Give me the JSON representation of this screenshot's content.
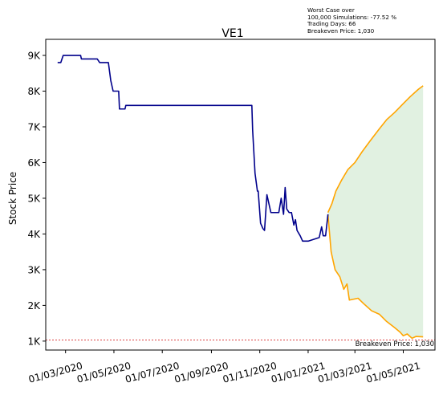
{
  "chart_data": {
    "type": "line",
    "title": "VE1",
    "xlabel": "",
    "ylabel": "Stock Price",
    "annotation_lines": [
      "Worst Case over",
      "100,000 Simulations: -77.52 %",
      "Trading Days: 66",
      "Breakeven Price: 1,030"
    ],
    "breakeven": {
      "value": 1030,
      "label": "Breakeven Price: 1,030",
      "color": "#d62728"
    },
    "x_ticks": [
      "01/03/2020",
      "01/05/2020",
      "01/07/2020",
      "01/09/2020",
      "01/11/2020",
      "01/01/2021",
      "01/03/2021",
      "01/05/2021"
    ],
    "y_ticks": [
      {
        "value": 1000,
        "label": "1K"
      },
      {
        "value": 2000,
        "label": "2K"
      },
      {
        "value": 3000,
        "label": "3K"
      },
      {
        "value": 4000,
        "label": "4K"
      },
      {
        "value": 5000,
        "label": "5K"
      },
      {
        "value": 6000,
        "label": "6K"
      },
      {
        "value": 7000,
        "label": "7K"
      },
      {
        "value": 8000,
        "label": "8K"
      },
      {
        "value": 9000,
        "label": "9K"
      }
    ],
    "xlim": [
      "2020-02-05",
      "2021-06-10"
    ],
    "ylim": [
      750,
      9450
    ],
    "grid": false,
    "colors": {
      "history": "#00008b",
      "simulation": "#ffa500",
      "band": "#c8e6c9"
    },
    "series": [
      {
        "role": "history",
        "points": [
          [
            "2020-02-20",
            8800
          ],
          [
            "2020-02-24",
            8800
          ],
          [
            "2020-02-27",
            9000
          ],
          [
            "2020-03-02",
            9000
          ],
          [
            "2020-03-20",
            9000
          ],
          [
            "2020-03-21",
            8900
          ],
          [
            "2020-04-10",
            8900
          ],
          [
            "2020-04-13",
            8800
          ],
          [
            "2020-04-24",
            8800
          ],
          [
            "2020-04-27",
            8300
          ],
          [
            "2020-04-30",
            8000
          ],
          [
            "2020-05-07",
            8000
          ],
          [
            "2020-05-08",
            7500
          ],
          [
            "2020-05-15",
            7500
          ],
          [
            "2020-05-16",
            7600
          ],
          [
            "2020-10-22",
            7600
          ],
          [
            "2020-10-23",
            6900
          ],
          [
            "2020-10-26",
            5700
          ],
          [
            "2020-10-29",
            5200
          ],
          [
            "2020-10-30",
            5200
          ],
          [
            "2020-11-02",
            4300
          ],
          [
            "2020-11-05",
            4150
          ],
          [
            "2020-11-07",
            4100
          ],
          [
            "2020-11-10",
            5100
          ],
          [
            "2020-11-15",
            4600
          ],
          [
            "2020-11-25",
            4600
          ],
          [
            "2020-11-28",
            5000
          ],
          [
            "2020-12-01",
            4550
          ],
          [
            "2020-12-03",
            5300
          ],
          [
            "2020-12-05",
            4700
          ],
          [
            "2020-12-08",
            4600
          ],
          [
            "2020-12-11",
            4600
          ],
          [
            "2020-12-14",
            4250
          ],
          [
            "2020-12-16",
            4400
          ],
          [
            "2020-12-18",
            4100
          ],
          [
            "2020-12-22",
            3950
          ],
          [
            "2020-12-25",
            3800
          ],
          [
            "2021-01-01",
            3800
          ],
          [
            "2021-01-15",
            3900
          ],
          [
            "2021-01-18",
            4200
          ],
          [
            "2021-01-20",
            3950
          ],
          [
            "2021-01-23",
            3950
          ],
          [
            "2021-01-26",
            4550
          ]
        ]
      },
      {
        "role": "simulation-upper",
        "points": [
          [
            "2021-01-26",
            4600
          ],
          [
            "2021-01-31",
            4850
          ],
          [
            "2021-02-05",
            5200
          ],
          [
            "2021-02-12",
            5500
          ],
          [
            "2021-02-20",
            5800
          ],
          [
            "2021-03-01",
            6000
          ],
          [
            "2021-03-10",
            6300
          ],
          [
            "2021-03-20",
            6600
          ],
          [
            "2021-04-01",
            6950
          ],
          [
            "2021-04-10",
            7200
          ],
          [
            "2021-04-20",
            7400
          ],
          [
            "2021-05-01",
            7650
          ],
          [
            "2021-05-10",
            7850
          ],
          [
            "2021-05-20",
            8050
          ],
          [
            "2021-05-26",
            8150
          ]
        ]
      },
      {
        "role": "simulation-lower",
        "points": [
          [
            "2021-01-26",
            4550
          ],
          [
            "2021-01-30",
            3500
          ],
          [
            "2021-02-04",
            3000
          ],
          [
            "2021-02-10",
            2800
          ],
          [
            "2021-02-15",
            2450
          ],
          [
            "2021-02-19",
            2600
          ],
          [
            "2021-02-22",
            2150
          ],
          [
            "2021-03-05",
            2200
          ],
          [
            "2021-03-12",
            2050
          ],
          [
            "2021-03-22",
            1850
          ],
          [
            "2021-04-01",
            1750
          ],
          [
            "2021-04-10",
            1550
          ],
          [
            "2021-04-20",
            1380
          ],
          [
            "2021-04-27",
            1250
          ],
          [
            "2021-05-01",
            1150
          ],
          [
            "2021-05-06",
            1200
          ],
          [
            "2021-05-12",
            1080
          ],
          [
            "2021-05-17",
            1130
          ],
          [
            "2021-05-26",
            1120
          ]
        ]
      }
    ]
  }
}
